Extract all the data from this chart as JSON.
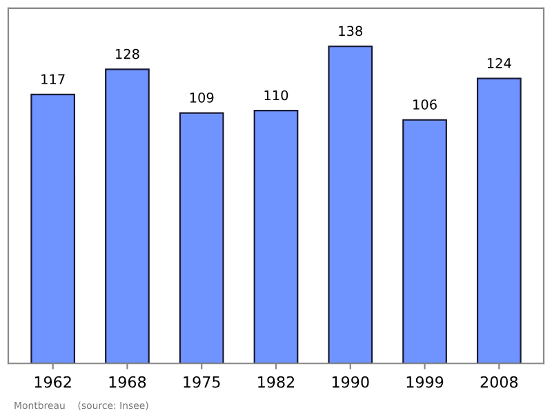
{
  "chart_data": {
    "type": "bar",
    "categories": [
      "1962",
      "1968",
      "1975",
      "1982",
      "1990",
      "1999",
      "2008"
    ],
    "values": [
      117,
      128,
      109,
      110,
      138,
      106,
      124
    ],
    "color": "#7094ff",
    "data_labels": true,
    "grid": false,
    "legend": false,
    "annotations": [
      "Montbreau    (source: Insee)"
    ]
  }
}
